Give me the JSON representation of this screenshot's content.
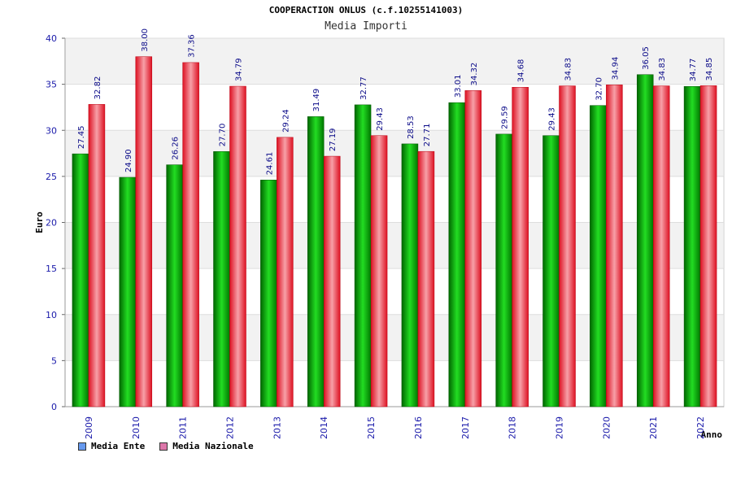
{
  "chart_data": {
    "type": "bar",
    "title": "COOPERACTION ONLUS (c.f.10255141003)",
    "subtitle": "Media Importi",
    "xlabel": "Anno",
    "ylabel": "Euro",
    "ylim": [
      0,
      40
    ],
    "yticks": [
      0,
      5,
      10,
      15,
      20,
      25,
      30,
      35,
      40
    ],
    "categories": [
      "2009",
      "2010",
      "2011",
      "2012",
      "2013",
      "2014",
      "2015",
      "2016",
      "2017",
      "2018",
      "2019",
      "2020",
      "2021",
      "2022"
    ],
    "series": [
      {
        "name": "Media Ente",
        "color": "#00bb00",
        "values": [
          27.45,
          24.9,
          26.26,
          27.7,
          24.61,
          31.49,
          32.77,
          28.53,
          33.01,
          29.59,
          29.43,
          32.7,
          36.05,
          34.77
        ],
        "labels": [
          "27.45",
          "24.90",
          "26.26",
          "27.70",
          "24.61",
          "31.49",
          "32.77",
          "28.53",
          "33.01",
          "29.59",
          "29.43",
          "32.70",
          "36.05",
          "34.77"
        ]
      },
      {
        "name": "Media Nazionale",
        "color": "#ee2233",
        "values": [
          32.82,
          38.0,
          37.36,
          34.79,
          29.24,
          27.19,
          29.43,
          27.71,
          34.32,
          34.68,
          34.83,
          34.94,
          34.83,
          34.85
        ],
        "labels": [
          "32.82",
          "38.00",
          "37.36",
          "34.79",
          "29.24",
          "27.19",
          "29.43",
          "27.71",
          "34.32",
          "34.68",
          "34.83",
          "34.94",
          "34.83",
          "34.85"
        ]
      }
    ],
    "legend": [
      {
        "label": "Media Ente",
        "color": "#6699ee"
      },
      {
        "label": "Media Nazionale",
        "color": "#dd77aa"
      }
    ],
    "grid": true,
    "legend_position": "bottom-left"
  }
}
